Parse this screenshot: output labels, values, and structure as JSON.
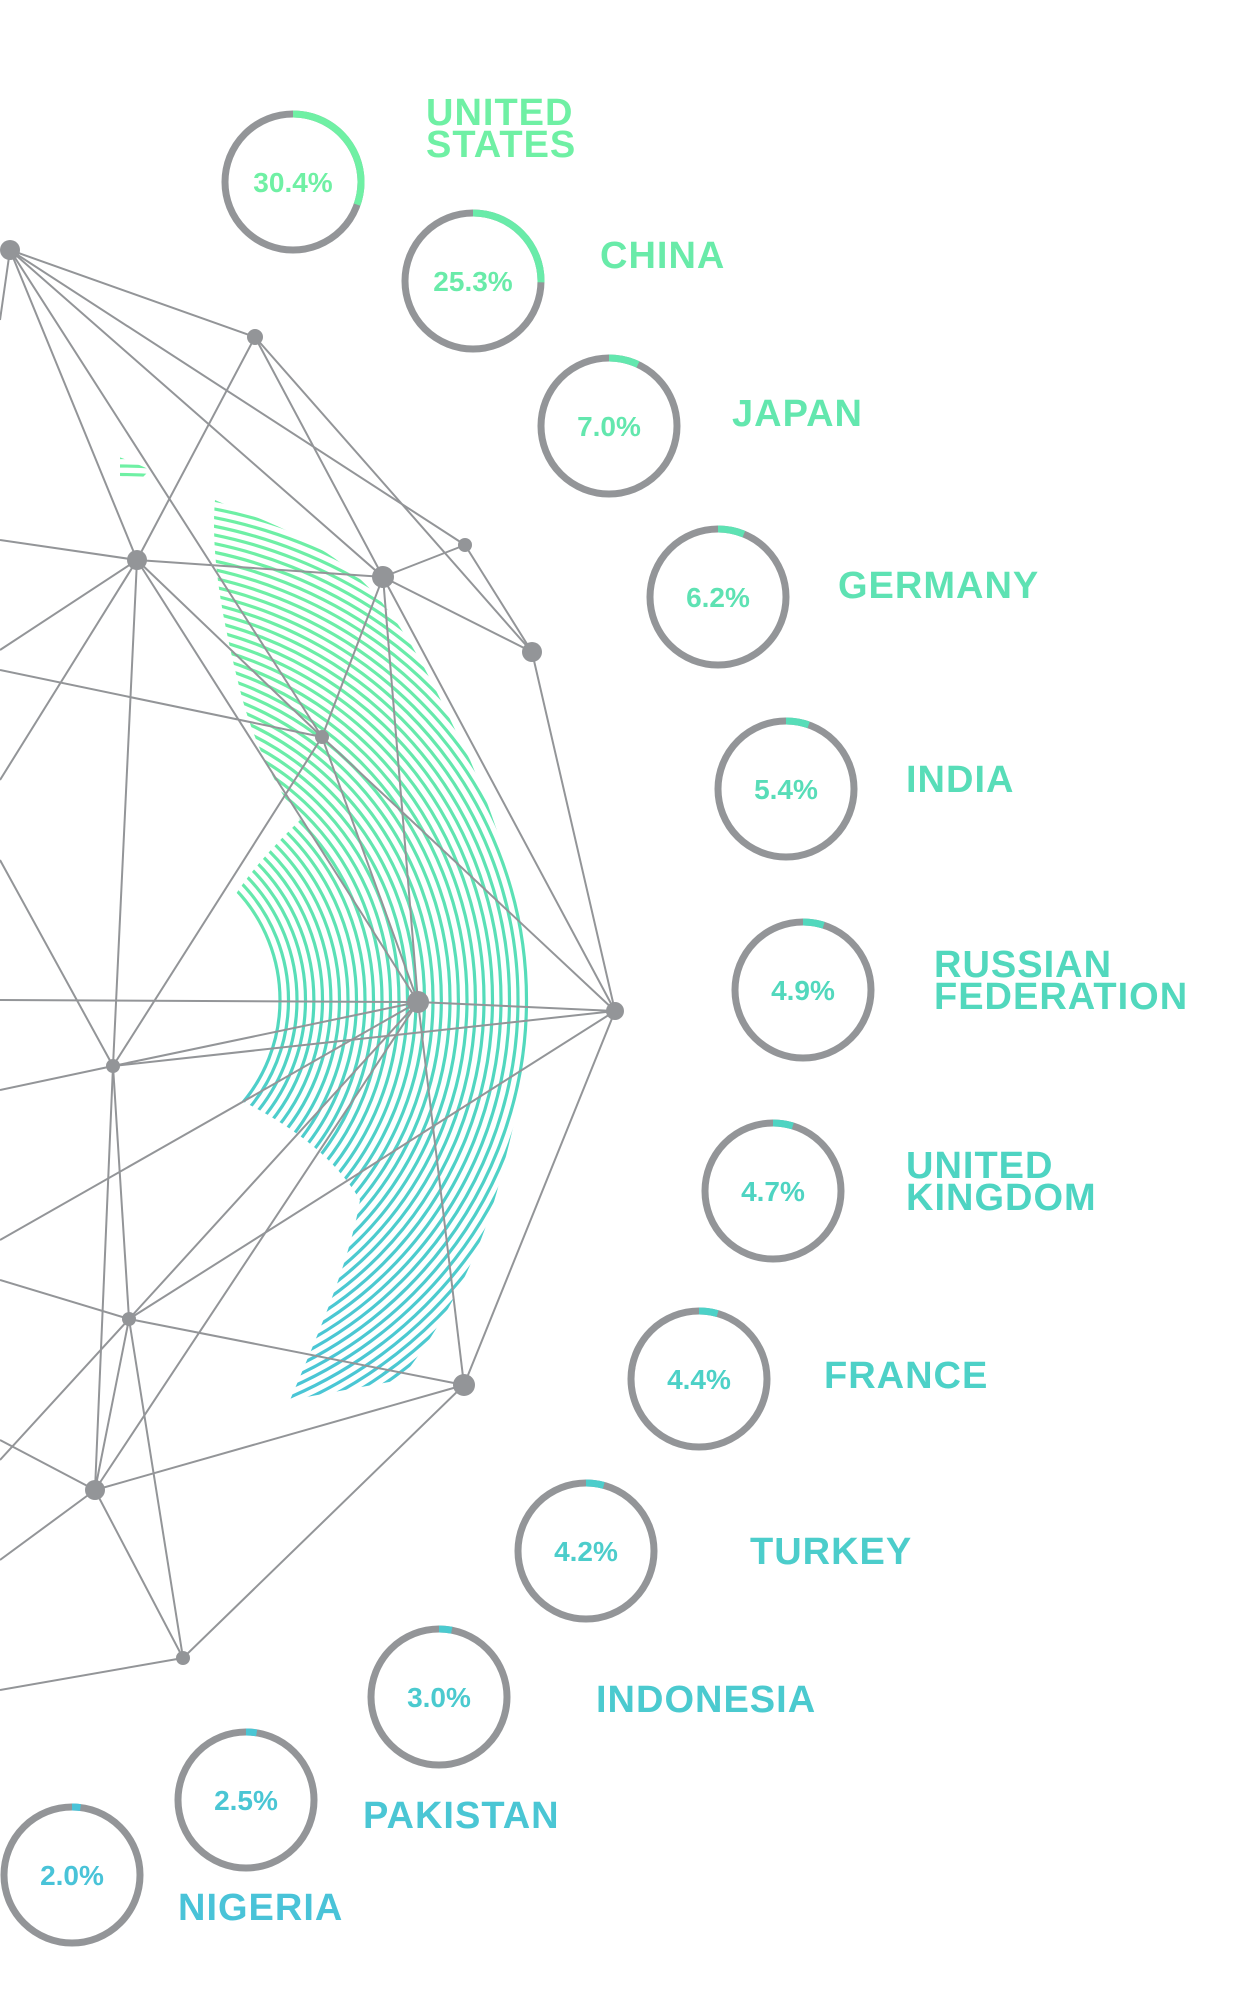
{
  "chart_data": {
    "type": "radial-progress",
    "title": "",
    "colors": {
      "ring_track": "#939598",
      "network": "#939598",
      "green": "#6ff0a4",
      "teal": "#4fd6c0",
      "blue": "#49c3d8"
    },
    "items": [
      {
        "label": "UNITED STATES",
        "label_lines": [
          "UNITED",
          "STATES"
        ],
        "value": 30.4,
        "value_label": "30.4%"
      },
      {
        "label": "CHINA",
        "label_lines": [
          "CHINA"
        ],
        "value": 25.3,
        "value_label": "25.3%"
      },
      {
        "label": "JAPAN",
        "label_lines": [
          "JAPAN"
        ],
        "value": 7.0,
        "value_label": "7.0%"
      },
      {
        "label": "GERMANY",
        "label_lines": [
          "GERMANY"
        ],
        "value": 6.2,
        "value_label": "6.2%"
      },
      {
        "label": "INDIA",
        "label_lines": [
          "INDIA"
        ],
        "value": 5.4,
        "value_label": "5.4%"
      },
      {
        "label": "RUSSIAN FEDERATION",
        "label_lines": [
          "RUSSIAN",
          "FEDERATION"
        ],
        "value": 4.9,
        "value_label": "4.9%"
      },
      {
        "label": "UNITED KINGDOM",
        "label_lines": [
          "UNITED",
          "KINGDOM"
        ],
        "value": 4.7,
        "value_label": "4.7%"
      },
      {
        "label": "FRANCE",
        "label_lines": [
          "FRANCE"
        ],
        "value": 4.4,
        "value_label": "4.4%"
      },
      {
        "label": "TURKEY",
        "label_lines": [
          "TURKEY"
        ],
        "value": 4.2,
        "value_label": "4.2%"
      },
      {
        "label": "INDONESIA",
        "label_lines": [
          "INDONESIA"
        ],
        "value": 3.0,
        "value_label": "3.0%"
      },
      {
        "label": "PAKISTAN",
        "label_lines": [
          "PAKISTAN"
        ],
        "value": 2.5,
        "value_label": "2.5%"
      },
      {
        "label": "NIGERIA",
        "label_lines": [
          "NIGERIA"
        ],
        "value": 2.0,
        "value_label": "2.0%"
      }
    ]
  }
}
